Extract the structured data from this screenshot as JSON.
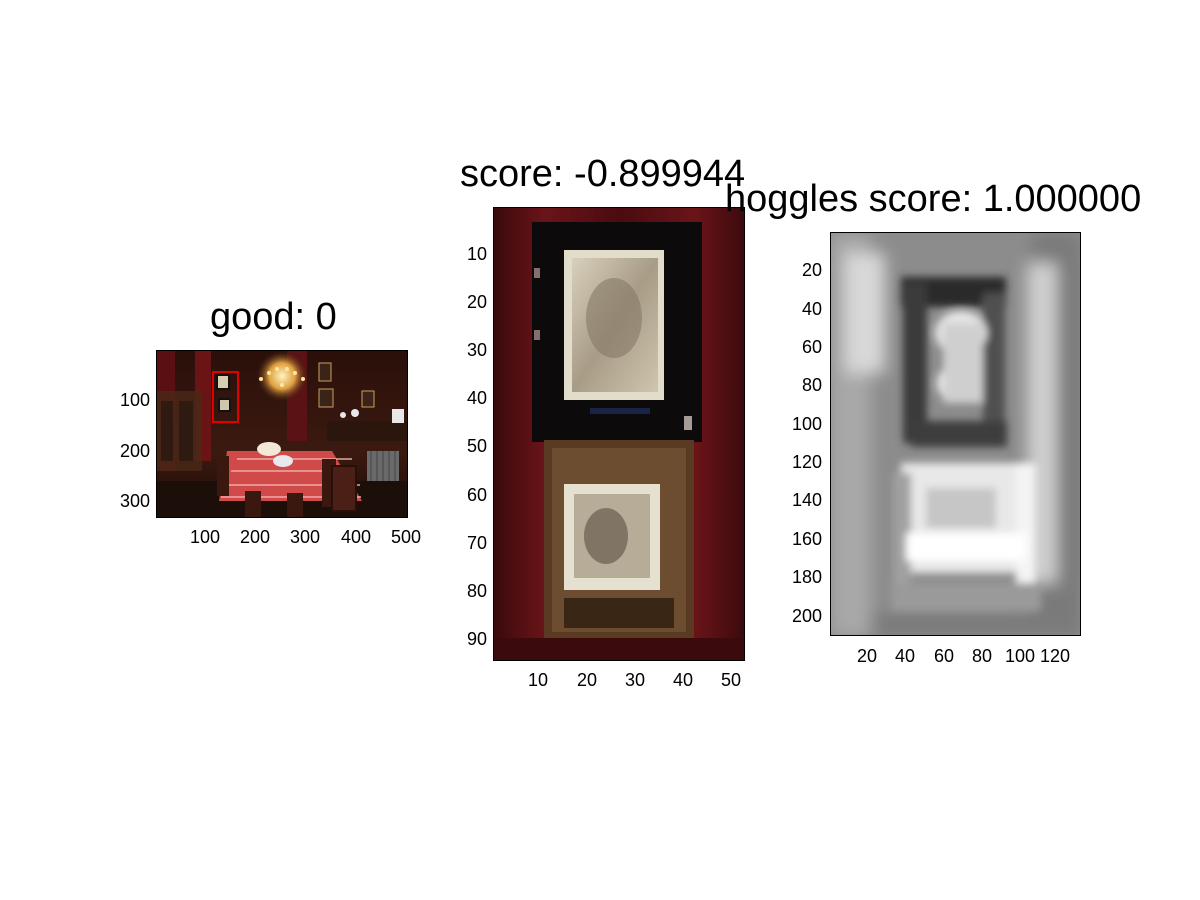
{
  "panels": [
    {
      "id": "scene",
      "title": "good: 0",
      "yticks": [
        "100",
        "200",
        "300"
      ],
      "xticks": [
        "100",
        "200",
        "300",
        "400",
        "500"
      ],
      "image": "dining-room-scene",
      "detection_box_color": "#e00000"
    },
    {
      "id": "crop",
      "title": "score: -0.899944",
      "yticks": [
        "10",
        "20",
        "30",
        "40",
        "50",
        "60",
        "70",
        "80",
        "90"
      ],
      "xticks": [
        "10",
        "20",
        "30",
        "40",
        "50"
      ],
      "image": "framed-pictures-crop"
    },
    {
      "id": "hoggles",
      "title": "hoggles score: 1.000000",
      "yticks": [
        "20",
        "40",
        "60",
        "80",
        "100",
        "120",
        "140",
        "160",
        "180",
        "200"
      ],
      "xticks": [
        "20",
        "40",
        "60",
        "80",
        "100",
        "120"
      ],
      "image": "grayscale-hog-reconstruction"
    }
  ]
}
